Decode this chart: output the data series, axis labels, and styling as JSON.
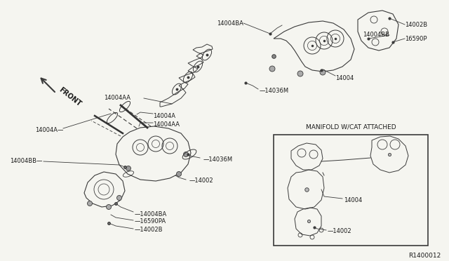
{
  "bg_color": "#f5f5f0",
  "line_color": "#3a3a3a",
  "text_color": "#1a1a1a",
  "diagram_number": "R1400012",
  "inset_title": "MANIFOLD W/CAT ATTACHED",
  "front_label": "FRONT",
  "fig_w": 6.4,
  "fig_h": 3.72,
  "dpi": 100
}
